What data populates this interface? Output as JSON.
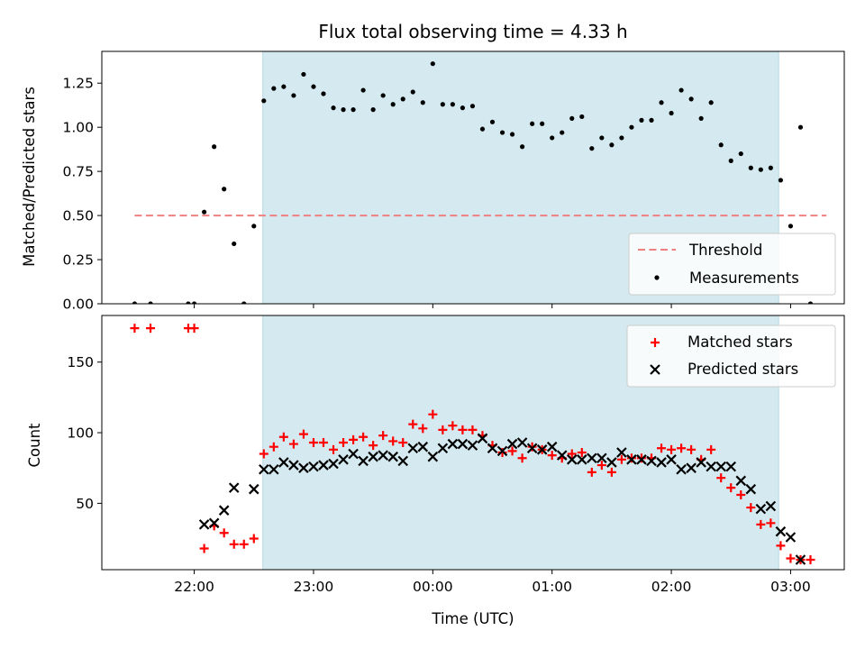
{
  "chart_data": {
    "type": "scatter",
    "title": "Flux total observing time = 4.33 h",
    "xlabel": "Time (UTC)",
    "x_tick_labels": [
      "22:00",
      "23:00",
      "00:00",
      "01:00",
      "02:00",
      "03:00"
    ],
    "x_tick_values": [
      0,
      60,
      120,
      180,
      240,
      300
    ],
    "x_origin_time": "22:00",
    "xlim": [
      -46.5,
      327
    ],
    "observing_window": [
      34.5,
      294
    ],
    "observing_window_color": "#d4eaf0",
    "panels": [
      {
        "id": "ratio",
        "ylabel": "Matched/Predicted stars",
        "ylim": [
          0,
          1.43
        ],
        "y_ticks": [
          0.0,
          0.25,
          0.5,
          0.75,
          1.0,
          1.25
        ],
        "y_tick_labels": [
          "0.00",
          "0.25",
          "0.50",
          "0.75",
          "1.00",
          "1.25"
        ],
        "legend_position": "lower right",
        "threshold": {
          "name": "Threshold",
          "value": 0.5,
          "x_range": [
            -30,
            318
          ],
          "color": "#f08080"
        },
        "series": [
          {
            "name": "Measurements",
            "marker": "dot",
            "color": "#000000",
            "points": [
              [
                -30,
                0.0
              ],
              [
                -22,
                0.0
              ],
              [
                -3,
                0.0
              ],
              [
                0,
                0.0
              ],
              [
                5,
                0.52
              ],
              [
                10,
                0.89
              ],
              [
                15,
                0.65
              ],
              [
                20,
                0.34
              ],
              [
                25,
                0.0
              ],
              [
                30,
                0.44
              ],
              [
                35,
                1.15
              ],
              [
                40,
                1.22
              ],
              [
                45,
                1.23
              ],
              [
                50,
                1.18
              ],
              [
                55,
                1.3
              ],
              [
                60,
                1.23
              ],
              [
                65,
                1.19
              ],
              [
                70,
                1.11
              ],
              [
                75,
                1.1
              ],
              [
                80,
                1.1
              ],
              [
                85,
                1.21
              ],
              [
                90,
                1.1
              ],
              [
                95,
                1.18
              ],
              [
                100,
                1.13
              ],
              [
                105,
                1.16
              ],
              [
                110,
                1.2
              ],
              [
                115,
                1.14
              ],
              [
                120,
                1.36
              ],
              [
                125,
                1.13
              ],
              [
                130,
                1.13
              ],
              [
                135,
                1.11
              ],
              [
                140,
                1.12
              ],
              [
                145,
                0.99
              ],
              [
                150,
                1.03
              ],
              [
                155,
                0.97
              ],
              [
                160,
                0.96
              ],
              [
                165,
                0.89
              ],
              [
                170,
                1.02
              ],
              [
                175,
                1.02
              ],
              [
                180,
                0.94
              ],
              [
                185,
                0.97
              ],
              [
                190,
                1.05
              ],
              [
                195,
                1.06
              ],
              [
                200,
                0.88
              ],
              [
                205,
                0.94
              ],
              [
                210,
                0.9
              ],
              [
                215,
                0.94
              ],
              [
                220,
                1.0
              ],
              [
                225,
                1.04
              ],
              [
                230,
                1.04
              ],
              [
                235,
                1.14
              ],
              [
                240,
                1.08
              ],
              [
                245,
                1.21
              ],
              [
                250,
                1.16
              ],
              [
                255,
                1.05
              ],
              [
                260,
                1.14
              ],
              [
                265,
                0.9
              ],
              [
                270,
                0.81
              ],
              [
                275,
                0.85
              ],
              [
                280,
                0.77
              ],
              [
                285,
                0.76
              ],
              [
                290,
                0.77
              ],
              [
                295,
                0.7
              ],
              [
                300,
                0.44
              ],
              [
                305,
                1.0
              ],
              [
                310,
                0.0
              ]
            ]
          }
        ]
      },
      {
        "id": "count",
        "ylabel": "Count",
        "ylim": [
          3,
          183
        ],
        "y_ticks": [
          50,
          100,
          150
        ],
        "y_tick_labels": [
          "50",
          "100",
          "150"
        ],
        "legend_position": "upper right",
        "series": [
          {
            "name": "Matched stars",
            "marker": "plus",
            "color": "#ff0000",
            "points": [
              [
                -30,
                174
              ],
              [
                -22,
                174
              ],
              [
                -3,
                174
              ],
              [
                0,
                174
              ],
              [
                5,
                18
              ],
              [
                10,
                34
              ],
              [
                15,
                29
              ],
              [
                20,
                21
              ],
              [
                25,
                21
              ],
              [
                30,
                25
              ],
              [
                35,
                85
              ],
              [
                40,
                90
              ],
              [
                45,
                97
              ],
              [
                50,
                92
              ],
              [
                55,
                99
              ],
              [
                60,
                93
              ],
              [
                65,
                93
              ],
              [
                70,
                88
              ],
              [
                75,
                93
              ],
              [
                80,
                95
              ],
              [
                85,
                97
              ],
              [
                90,
                91
              ],
              [
                95,
                98
              ],
              [
                100,
                94
              ],
              [
                105,
                93
              ],
              [
                110,
                106
              ],
              [
                115,
                103
              ],
              [
                120,
                113
              ],
              [
                125,
                102
              ],
              [
                130,
                105
              ],
              [
                135,
                102
              ],
              [
                140,
                102
              ],
              [
                145,
                98
              ],
              [
                150,
                91
              ],
              [
                155,
                86
              ],
              [
                160,
                87
              ],
              [
                165,
                82
              ],
              [
                170,
                90
              ],
              [
                175,
                88
              ],
              [
                180,
                84
              ],
              [
                185,
                82
              ],
              [
                190,
                85
              ],
              [
                195,
                86
              ],
              [
                200,
                72
              ],
              [
                205,
                77
              ],
              [
                210,
                72
              ],
              [
                215,
                81
              ],
              [
                220,
                82
              ],
              [
                225,
                82
              ],
              [
                230,
                82
              ],
              [
                235,
                89
              ],
              [
                240,
                88
              ],
              [
                245,
                89
              ],
              [
                250,
                88
              ],
              [
                255,
                81
              ],
              [
                260,
                88
              ],
              [
                265,
                68
              ],
              [
                270,
                61
              ],
              [
                275,
                56
              ],
              [
                280,
                47
              ],
              [
                285,
                35
              ],
              [
                290,
                36
              ],
              [
                295,
                20
              ],
              [
                300,
                11
              ],
              [
                305,
                10
              ],
              [
                310,
                10
              ]
            ]
          },
          {
            "name": "Predicted stars",
            "marker": "x",
            "color": "#000000",
            "points": [
              [
                5,
                35
              ],
              [
                10,
                36
              ],
              [
                15,
                45
              ],
              [
                20,
                61
              ],
              [
                30,
                60
              ],
              [
                35,
                74
              ],
              [
                40,
                74
              ],
              [
                45,
                79
              ],
              [
                50,
                77
              ],
              [
                55,
                75
              ],
              [
                60,
                76
              ],
              [
                65,
                77
              ],
              [
                70,
                78
              ],
              [
                75,
                81
              ],
              [
                80,
                85
              ],
              [
                85,
                80
              ],
              [
                90,
                83
              ],
              [
                95,
                84
              ],
              [
                100,
                83
              ],
              [
                105,
                80
              ],
              [
                110,
                89
              ],
              [
                115,
                90
              ],
              [
                120,
                83
              ],
              [
                125,
                89
              ],
              [
                130,
                92
              ],
              [
                135,
                92
              ],
              [
                140,
                91
              ],
              [
                145,
                96
              ],
              [
                150,
                89
              ],
              [
                155,
                87
              ],
              [
                160,
                92
              ],
              [
                165,
                93
              ],
              [
                170,
                89
              ],
              [
                175,
                88
              ],
              [
                180,
                90
              ],
              [
                185,
                84
              ],
              [
                190,
                81
              ],
              [
                195,
                81
              ],
              [
                200,
                82
              ],
              [
                205,
                82
              ],
              [
                210,
                79
              ],
              [
                215,
                86
              ],
              [
                220,
                81
              ],
              [
                225,
                81
              ],
              [
                230,
                80
              ],
              [
                235,
                79
              ],
              [
                240,
                81
              ],
              [
                245,
                74
              ],
              [
                250,
                75
              ],
              [
                255,
                79
              ],
              [
                260,
                76
              ],
              [
                265,
                76
              ],
              [
                270,
                76
              ],
              [
                275,
                66
              ],
              [
                280,
                60
              ],
              [
                285,
                46
              ],
              [
                290,
                48
              ],
              [
                295,
                30
              ],
              [
                300,
                26
              ],
              [
                305,
                10
              ]
            ]
          }
        ]
      }
    ]
  }
}
